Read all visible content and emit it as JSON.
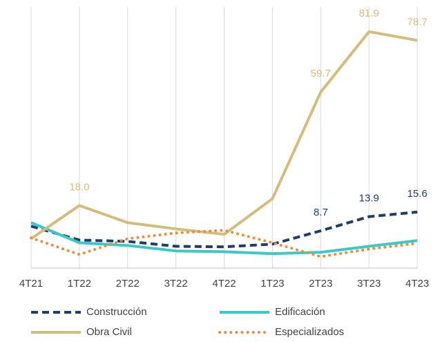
{
  "chart_data": {
    "type": "line",
    "categories": [
      "4T21",
      "1T22",
      "2T22",
      "3T22",
      "4T22",
      "1T23",
      "2T23",
      "3T23",
      "4T23"
    ],
    "ylim": [
      -5,
      91
    ],
    "series": [
      {
        "name": "Construcción",
        "color": "#1f3c6e",
        "style": "dashed",
        "values": [
          10.4,
          5.3,
          4.8,
          3.0,
          2.8,
          3.8,
          8.7,
          13.9,
          15.6
        ],
        "value_labels": [
          null,
          null,
          null,
          null,
          null,
          null,
          "8.7",
          "13.9",
          "15.6"
        ]
      },
      {
        "name": "Edificación",
        "color": "#3cc7c9",
        "style": "solid",
        "values": [
          11.7,
          4.3,
          3.3,
          1.3,
          1.0,
          0.3,
          0.8,
          3.0,
          5.1
        ]
      },
      {
        "name": "Obra Civil",
        "color": "#d4bc7a",
        "style": "solid",
        "values": [
          5.8,
          18.0,
          11.7,
          9.4,
          7.4,
          20.5,
          59.7,
          81.9,
          78.7
        ],
        "value_labels": [
          null,
          "18.0",
          null,
          null,
          null,
          null,
          "59.7",
          "81.9",
          "78.7"
        ]
      },
      {
        "name": "Especializados",
        "color": "#f08a3c",
        "style": "dotted",
        "values": [
          6.1,
          0.0,
          5.8,
          7.9,
          8.9,
          4.3,
          -0.8,
          2.0,
          4.1
        ]
      }
    ]
  }
}
